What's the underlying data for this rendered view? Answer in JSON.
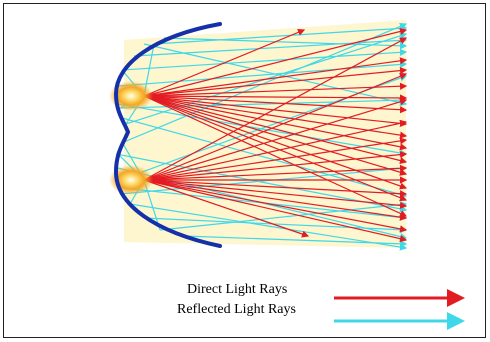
{
  "legend": {
    "direct_label": "Direct Light Rays",
    "reflected_label": "Reflected Light Rays"
  },
  "colors": {
    "direct": "#e31b23",
    "reflected": "#3fd8e8",
    "reflector": "#1530a8",
    "beam_fill": "#fdf6cf",
    "source_core": "#f0a020"
  }
}
